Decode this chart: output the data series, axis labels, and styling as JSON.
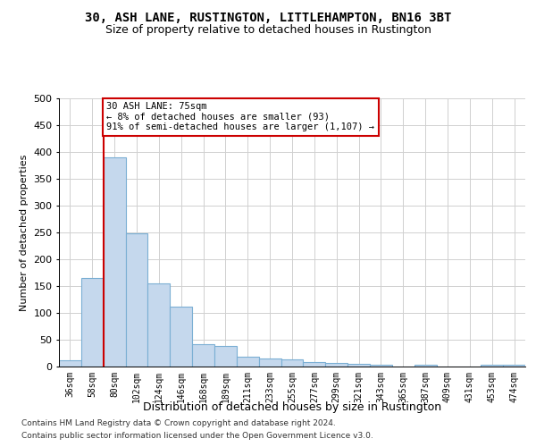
{
  "title1": "30, ASH LANE, RUSTINGTON, LITTLEHAMPTON, BN16 3BT",
  "title2": "Size of property relative to detached houses in Rustington",
  "xlabel": "Distribution of detached houses by size in Rustington",
  "ylabel": "Number of detached properties",
  "categories": [
    "36sqm",
    "58sqm",
    "80sqm",
    "102sqm",
    "124sqm",
    "146sqm",
    "168sqm",
    "189sqm",
    "211sqm",
    "233sqm",
    "255sqm",
    "277sqm",
    "299sqm",
    "321sqm",
    "343sqm",
    "365sqm",
    "387sqm",
    "409sqm",
    "431sqm",
    "453sqm",
    "474sqm"
  ],
  "values": [
    12,
    165,
    390,
    248,
    155,
    112,
    42,
    38,
    18,
    15,
    13,
    8,
    6,
    5,
    3,
    0,
    3,
    0,
    0,
    3,
    3
  ],
  "bar_color": "#c5d8ed",
  "bar_edge_color": "#7bafd4",
  "highlight_bar_index": 2,
  "highlight_color": "#cc0000",
  "annotation_line1": "30 ASH LANE: 75sqm",
  "annotation_line2": "← 8% of detached houses are smaller (93)",
  "annotation_line3": "91% of semi-detached houses are larger (1,107) →",
  "annotation_box_color": "#ffffff",
  "annotation_box_edge": "#cc0000",
  "ylim": [
    0,
    500
  ],
  "yticks": [
    0,
    50,
    100,
    150,
    200,
    250,
    300,
    350,
    400,
    450,
    500
  ],
  "footer1": "Contains HM Land Registry data © Crown copyright and database right 2024.",
  "footer2": "Contains public sector information licensed under the Open Government Licence v3.0.",
  "bg_color": "#ffffff",
  "grid_color": "#d0d0d0",
  "title1_fontsize": 10,
  "title2_fontsize": 9,
  "xlabel_fontsize": 9,
  "ylabel_fontsize": 8,
  "tick_fontsize": 7,
  "footer_fontsize": 6.5
}
